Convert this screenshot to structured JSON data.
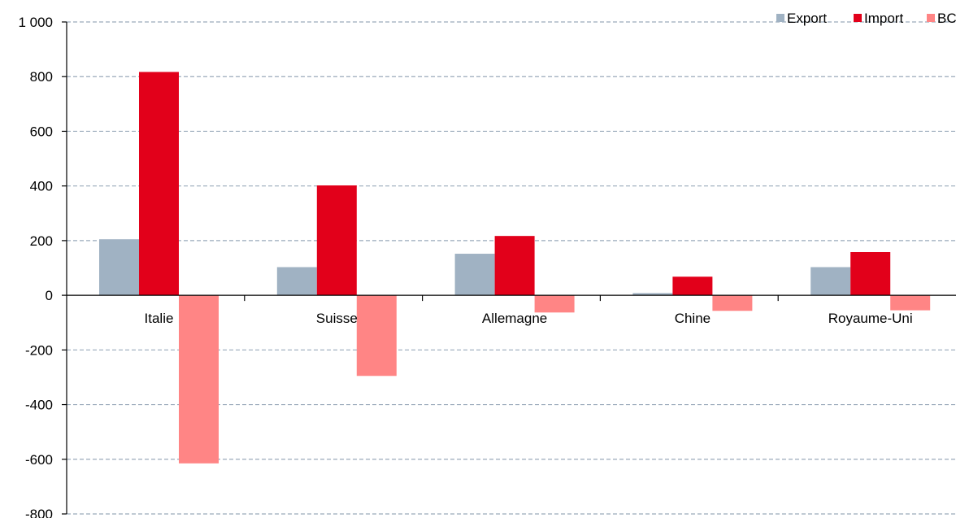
{
  "chart_data": {
    "type": "bar",
    "categories": [
      "Italie",
      "Suisse",
      "Allemagne",
      "Chine",
      "Royaume-Uni"
    ],
    "series": [
      {
        "name": "Export",
        "values": [
          205,
          103,
          152,
          8,
          103
        ],
        "color": "#a0b2c3"
      },
      {
        "name": "Import",
        "values": [
          817,
          402,
          217,
          68,
          158
        ],
        "color": "#e2001a"
      },
      {
        "name": "BC",
        "values": [
          -615,
          -295,
          -63,
          -57,
          -55
        ],
        "color": "#ff8585"
      }
    ],
    "ylim": [
      -800,
      1000
    ],
    "yticks": [
      {
        "value": -800,
        "label": "-800"
      },
      {
        "value": -600,
        "label": "-600"
      },
      {
        "value": -400,
        "label": "-400"
      },
      {
        "value": -200,
        "label": "-200"
      },
      {
        "value": 0,
        "label": "0"
      },
      {
        "value": 200,
        "label": "200"
      },
      {
        "value": 400,
        "label": "400"
      },
      {
        "value": 600,
        "label": "600"
      },
      {
        "value": 800,
        "label": "800"
      },
      {
        "value": 1000,
        "label": "1 000"
      }
    ],
    "grid": true,
    "gridColor": "#9aaabb",
    "legend_position": "top-right"
  }
}
